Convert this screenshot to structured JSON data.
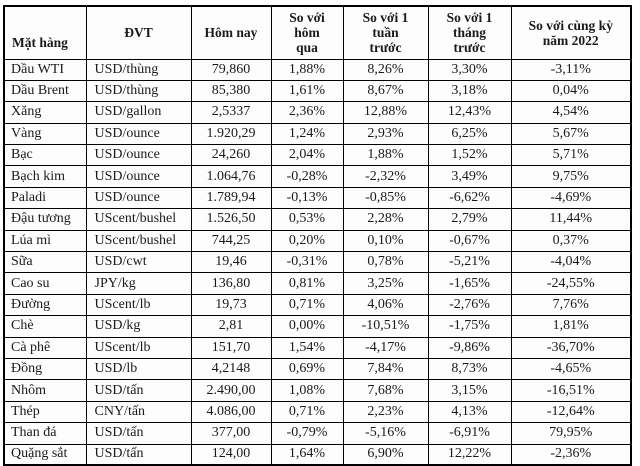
{
  "page": {
    "background_color": "#ffffff",
    "border_color": "#000000",
    "text_color": "#1a1a1a"
  },
  "table": {
    "headers": [
      {
        "label": "Mặt hàng"
      },
      {
        "label": "ĐVT"
      },
      {
        "label": "Hôm nay"
      },
      {
        "label": "So với\nhôm\nqua"
      },
      {
        "label": "So với 1\ntuần\ntrước"
      },
      {
        "label": "So với 1\ntháng\ntrước"
      },
      {
        "label": "So với cùng kỳ\nnăm 2022"
      }
    ],
    "rows": [
      {
        "name": "Dầu WTI",
        "unit": "USD/thùng",
        "today": "79,860",
        "vs_yesterday": "1,88%",
        "vs_week": "8,26%",
        "vs_month": "3,30%",
        "vs_2022": "-3,11%"
      },
      {
        "name": "Dầu Brent",
        "unit": "USD/thùng",
        "today": "85,380",
        "vs_yesterday": "1,61%",
        "vs_week": "8,67%",
        "vs_month": "3,18%",
        "vs_2022": "0,04%"
      },
      {
        "name": "Xăng",
        "unit": "USD/gallon",
        "today": "2,5337",
        "vs_yesterday": "2,36%",
        "vs_week": "12,88%",
        "vs_month": "12,43%",
        "vs_2022": "4,54%"
      },
      {
        "name": "Vàng",
        "unit": "USD/ounce",
        "today": "1.920,29",
        "vs_yesterday": "1,24%",
        "vs_week": "2,93%",
        "vs_month": "6,25%",
        "vs_2022": "5,67%"
      },
      {
        "name": "Bạc",
        "unit": "USD/ounce",
        "today": "24,260",
        "vs_yesterday": "2,04%",
        "vs_week": "1,88%",
        "vs_month": "1,52%",
        "vs_2022": "5,71%"
      },
      {
        "name": "Bạch kim",
        "unit": "USD/ounce",
        "today": "1.064,76",
        "vs_yesterday": "-0,28%",
        "vs_week": "-2,32%",
        "vs_month": "3,49%",
        "vs_2022": "9,75%"
      },
      {
        "name": "Paladi",
        "unit": "USD/ounce",
        "today": "1.789,94",
        "vs_yesterday": "-0,13%",
        "vs_week": "-0,85%",
        "vs_month": "-6,62%",
        "vs_2022": "-4,69%"
      },
      {
        "name": "Đậu tương",
        "unit": "UScent/bushel",
        "today": "1.526,50",
        "vs_yesterday": "0,53%",
        "vs_week": "2,28%",
        "vs_month": "2,79%",
        "vs_2022": "11,44%"
      },
      {
        "name": "Lúa mì",
        "unit": "UScent/bushel",
        "today": "744,25",
        "vs_yesterday": "0,20%",
        "vs_week": "0,10%",
        "vs_month": "-0,67%",
        "vs_2022": "0,37%"
      },
      {
        "name": "Sữa",
        "unit": "USD/cwt",
        "today": "19,46",
        "vs_yesterday": "-0,31%",
        "vs_week": "0,78%",
        "vs_month": "-5,21%",
        "vs_2022": "-4,04%"
      },
      {
        "name": "Cao su",
        "unit": "JPY/kg",
        "today": "136,80",
        "vs_yesterday": "0,81%",
        "vs_week": "3,25%",
        "vs_month": "-1,65%",
        "vs_2022": "-24,55%"
      },
      {
        "name": "Đường",
        "unit": "UScent/lb",
        "today": "19,73",
        "vs_yesterday": "0,71%",
        "vs_week": "4,06%",
        "vs_month": "-2,76%",
        "vs_2022": "7,76%"
      },
      {
        "name": "Chè",
        "unit": "USD/kg",
        "today": "2,81",
        "vs_yesterday": "0,00%",
        "vs_week": "-10,51%",
        "vs_month": "-1,75%",
        "vs_2022": "1,81%"
      },
      {
        "name": "Cà phê",
        "unit": "UScent/lb",
        "today": "151,70",
        "vs_yesterday": "1,54%",
        "vs_week": "-4,17%",
        "vs_month": "-9,86%",
        "vs_2022": "-36,70%"
      },
      {
        "name": "Đồng",
        "unit": "USD/lb",
        "today": "4,2148",
        "vs_yesterday": "0,69%",
        "vs_week": "7,84%",
        "vs_month": "8,73%",
        "vs_2022": "-4,65%"
      },
      {
        "name": "Nhôm",
        "unit": "USD/tấn",
        "today": "2.490,00",
        "vs_yesterday": "1,08%",
        "vs_week": "7,68%",
        "vs_month": "3,15%",
        "vs_2022": "-16,51%"
      },
      {
        "name": "Thép",
        "unit": "CNY/tấn",
        "today": "4.086,00",
        "vs_yesterday": "0,71%",
        "vs_week": "2,23%",
        "vs_month": "4,13%",
        "vs_2022": "-12,64%"
      },
      {
        "name": "Than đá",
        "unit": "USD/tấn",
        "today": "377,00",
        "vs_yesterday": "-0,79%",
        "vs_week": "-5,16%",
        "vs_month": "-6,91%",
        "vs_2022": "79,95%"
      },
      {
        "name": "Quặng sắt",
        "unit": "USD/tấn",
        "today": "124,00",
        "vs_yesterday": "1,64%",
        "vs_week": "6,90%",
        "vs_month": "12,22%",
        "vs_2022": "-2,36%"
      }
    ]
  }
}
